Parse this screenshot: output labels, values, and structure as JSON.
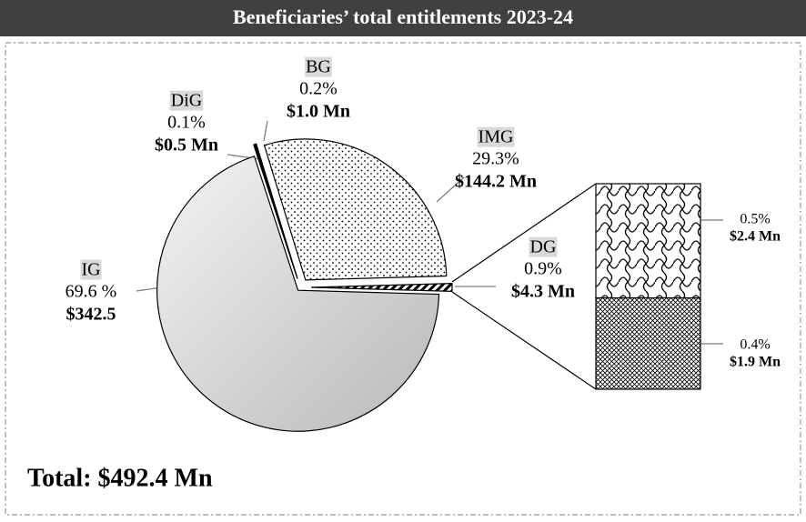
{
  "chart_data": {
    "type": "pie",
    "title": "Beneficiaries’ total entitlements 2023-24",
    "categories": [
      "DG",
      "IG",
      "DiG",
      "BG",
      "IMG"
    ],
    "values": [
      0.9,
      69.6,
      0.1,
      0.2,
      29.3
    ],
    "value_labels": [
      "0.9%",
      "69.6 %",
      "0.1%",
      "0.2%",
      "29.3%"
    ],
    "amounts": [
      4.3,
      342.5,
      0.5,
      1.0,
      144.2
    ],
    "amount_labels": [
      "$4.3 Mn",
      "$342.5",
      "$0.5 Mn",
      "$1.0 Mn",
      "$144.2 Mn"
    ],
    "breakdown": {
      "values": [
        0.5,
        0.4
      ],
      "value_labels": [
        "0.5%",
        "0.4%"
      ],
      "amounts": [
        2.4,
        1.9
      ],
      "amount_labels": [
        "$2.4 Mn",
        "$1.9 Mn"
      ]
    },
    "total_label": "Total: $492.4 Mn"
  }
}
